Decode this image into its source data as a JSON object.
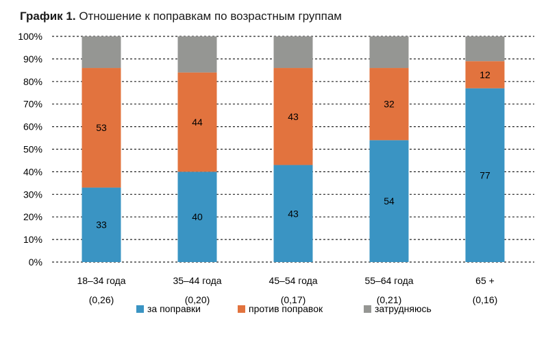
{
  "title_bold": "График 1.",
  "title_rest": "Отношение к поправкам по возрастным группам",
  "chart_data": {
    "type": "bar",
    "stacked": true,
    "categories": [
      "18–34 года",
      "35–44 года",
      "45–54 года",
      "55–64 года",
      "65 +"
    ],
    "category_sublabels": [
      "(0,26)",
      "(0,20)",
      "(0,17)",
      "(0,21)",
      "(0,16)"
    ],
    "series": [
      {
        "name": "за поправки",
        "color": "#3a94c3",
        "values": [
          33,
          40,
          43,
          54,
          77
        ],
        "labeled": true
      },
      {
        "name": "против поправок",
        "color": "#e2733e",
        "values": [
          53,
          44,
          43,
          32,
          12
        ],
        "labeled": true
      },
      {
        "name": "затрудняюсь",
        "color": "#959693",
        "values": [
          14,
          16,
          14,
          14,
          11
        ],
        "labeled": false
      }
    ],
    "yticks": [
      "0%",
      "10%",
      "20%",
      "30%",
      "40%",
      "50%",
      "60%",
      "70%",
      "80%",
      "90%",
      "100%"
    ],
    "ylim": [
      0,
      100
    ],
    "grid": "horizontal dashed",
    "legend": "bottom"
  }
}
